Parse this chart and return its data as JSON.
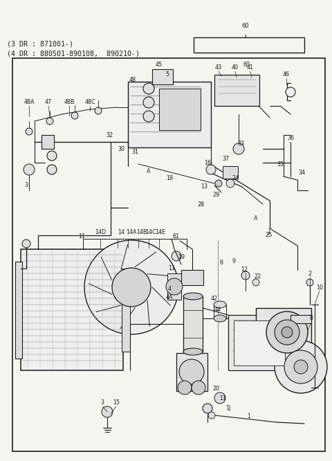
{
  "bg_color": "#f5f5f0",
  "border_color": "#1a1a1a",
  "text_color": "#1a1a1a",
  "header_line1": "(3 DR : 871001-)",
  "header_line2": "(4 DR : 880501-890108,  890210-)",
  "part_label_60": "60",
  "figsize": [
    4.8,
    6.66
  ],
  "dpi": 100,
  "dot_types": [
    "o",
    "o",
    "o",
    "d",
    "d",
    "d",
    "d"
  ],
  "header_font": 7.2,
  "label_font": 5.8
}
